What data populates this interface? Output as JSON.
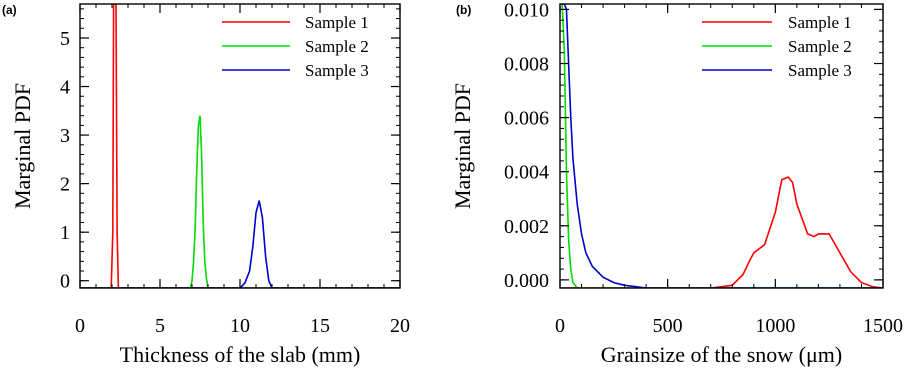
{
  "chart_data": [
    {
      "type": "line",
      "panel_tag": "(a)",
      "xlabel": "Thickness of the slab (mm)",
      "ylabel": "Marginal PDF",
      "xlim": [
        0,
        20
      ],
      "ylim": [
        -0.15,
        5.7
      ],
      "xticks": [
        0,
        5,
        10,
        15,
        20
      ],
      "xtick_labels": [
        "0",
        "5",
        "10",
        "15",
        "20"
      ],
      "yticks": [
        0,
        1,
        2,
        3,
        4,
        5
      ],
      "ytick_labels": [
        "0",
        "1",
        "2",
        "3",
        "4",
        "5"
      ],
      "legend_position": "top-right",
      "grid": false,
      "series": [
        {
          "name": "Sample 1",
          "color": "#ff0000",
          "x": [
            0,
            1.95,
            2.05,
            2.1,
            2.15,
            2.2,
            2.25,
            2.32,
            2.4,
            20
          ],
          "y": [
            -0.15,
            -0.15,
            1.0,
            5.7,
            5.7,
            5.7,
            5.7,
            1.0,
            -0.15,
            -0.15
          ]
        },
        {
          "name": "Sample 2",
          "color": "#00dd00",
          "x": [
            0,
            6.9,
            7.0,
            7.1,
            7.2,
            7.3,
            7.4,
            7.5,
            7.6,
            7.7,
            7.8,
            7.9,
            8.0,
            20
          ],
          "y": [
            -0.15,
            -0.15,
            0.0,
            0.4,
            1.1,
            2.3,
            3.2,
            3.4,
            2.6,
            1.2,
            0.4,
            0.05,
            -0.15,
            -0.15
          ]
        },
        {
          "name": "Sample 3",
          "color": "#0000cc",
          "x": [
            0,
            10.0,
            10.3,
            10.6,
            10.8,
            11.0,
            11.2,
            11.4,
            11.6,
            11.8,
            12.0,
            20
          ],
          "y": [
            -0.15,
            -0.15,
            -0.05,
            0.2,
            0.7,
            1.4,
            1.65,
            1.3,
            0.5,
            0.0,
            -0.15,
            -0.15
          ]
        }
      ]
    },
    {
      "type": "line",
      "panel_tag": "(b)",
      "xlabel": "Grainsize of the snow (μm)",
      "ylabel": "Marginal PDF",
      "xlim": [
        0,
        1500
      ],
      "ylim": [
        -0.0003,
        0.0102
      ],
      "xticks": [
        0,
        500,
        1000,
        1500
      ],
      "xtick_labels": [
        "0",
        "500",
        "1000",
        "1500"
      ],
      "yticks": [
        0.0,
        0.002,
        0.004,
        0.006,
        0.008,
        0.01
      ],
      "ytick_labels": [
        "0.000",
        "0.002",
        "0.004",
        "0.006",
        "0.008",
        "0.010"
      ],
      "legend_position": "top-right",
      "grid": false,
      "series": [
        {
          "name": "Sample 1",
          "color": "#ff0000",
          "x": [
            0,
            700,
            750,
            800,
            850,
            880,
            900,
            950,
            1000,
            1030,
            1060,
            1080,
            1100,
            1150,
            1180,
            1200,
            1250,
            1300,
            1350,
            1400,
            1450,
            1500
          ],
          "y": [
            -0.0003,
            -0.0003,
            -0.00025,
            -0.0002,
            0.0002,
            0.0007,
            0.001,
            0.0013,
            0.0025,
            0.0037,
            0.0038,
            0.0036,
            0.0028,
            0.0017,
            0.0016,
            0.0017,
            0.0017,
            0.001,
            0.0003,
            -0.0001,
            -0.00025,
            -0.0003
          ]
        },
        {
          "name": "Sample 2",
          "color": "#00dd00",
          "x": [
            0,
            10,
            20,
            30,
            40,
            50,
            60,
            80,
            100,
            1500
          ],
          "y": [
            0.0102,
            0.0102,
            0.0085,
            0.004,
            0.0015,
            0.0004,
            -0.0001,
            -0.0003,
            -0.0003,
            -0.0003
          ]
        },
        {
          "name": "Sample 3",
          "color": "#0000cc",
          "x": [
            0,
            20,
            30,
            40,
            50,
            60,
            80,
            100,
            120,
            150,
            200,
            250,
            300,
            400,
            1500
          ],
          "y": [
            0.0102,
            0.0102,
            0.01,
            0.008,
            0.006,
            0.0045,
            0.0028,
            0.0017,
            0.001,
            0.0005,
            0.0001,
            -0.0001,
            -0.0002,
            -0.0003,
            -0.0003
          ]
        }
      ]
    }
  ]
}
